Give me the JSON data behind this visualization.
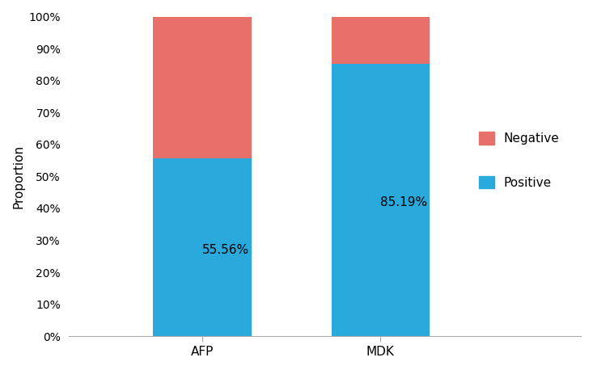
{
  "categories": [
    "AFP",
    "MDK"
  ],
  "positive_values": [
    55.56,
    85.19
  ],
  "negative_values": [
    44.44,
    14.81
  ],
  "positive_color": "#29A9DC",
  "negative_color": "#E8706A",
  "ylabel": "Proportion",
  "ylim": [
    0,
    1.0
  ],
  "ytick_labels": [
    "0%",
    "10%",
    "20%",
    "30%",
    "40%",
    "50%",
    "60%",
    "70%",
    "80%",
    "90%",
    "100%"
  ],
  "ytick_values": [
    0,
    0.1,
    0.2,
    0.3,
    0.4,
    0.5,
    0.6,
    0.7,
    0.8,
    0.9,
    1.0
  ],
  "legend_labels": [
    "Negative",
    "Positive"
  ],
  "label_AFP": "55.56%",
  "label_MDK": "85.19%",
  "label_fontsize": 11,
  "axis_fontsize": 11,
  "tick_fontsize": 10,
  "bar_width": 0.22
}
